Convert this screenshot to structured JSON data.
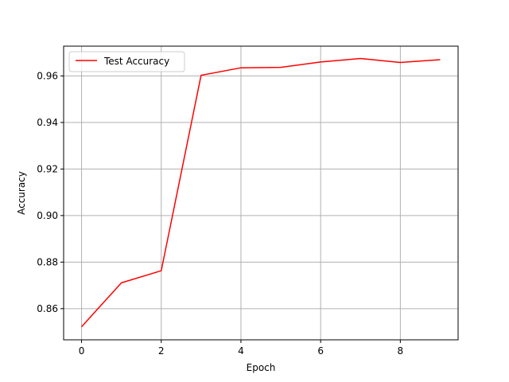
{
  "chart_data": {
    "type": "line",
    "title": "",
    "xlabel": "Epoch",
    "ylabel": "Accuracy",
    "xlim": [
      -0.45,
      9.45
    ],
    "ylim": [
      0.8466,
      0.9728
    ],
    "xticks": [
      0,
      2,
      4,
      6,
      8
    ],
    "xtick_labels": [
      "0",
      "2",
      "4",
      "6",
      "8"
    ],
    "yticks": [
      0.86,
      0.88,
      0.9,
      0.92,
      0.94,
      0.96
    ],
    "ytick_labels": [
      "0.86",
      "0.88",
      "0.90",
      "0.92",
      "0.94",
      "0.96"
    ],
    "grid": true,
    "legend_position": "upper-left",
    "series": [
      {
        "name": "Test Accuracy",
        "color": "#ff0000",
        "x": [
          0,
          1,
          2,
          3,
          4,
          5,
          6,
          7,
          8,
          9
        ],
        "values": [
          0.8522,
          0.8711,
          0.8763,
          0.9603,
          0.9635,
          0.9637,
          0.966,
          0.9675,
          0.9658,
          0.967
        ]
      }
    ]
  }
}
